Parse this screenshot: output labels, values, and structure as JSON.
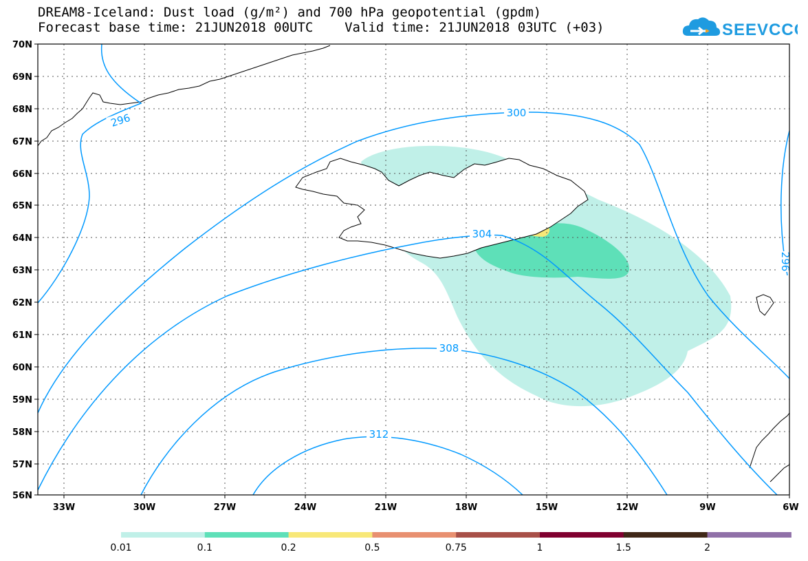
{
  "header": {
    "title_line1": "DREAM8-Iceland: Dust load (g/m²) and 700 hPa geopotential (gpdm)",
    "title_line2": "Forecast base time: 21JUN2018 00UTC    Valid time: 21JUN2018 03UTC (+03)"
  },
  "logo": {
    "text": "SEEVCCC",
    "icon": "cloud-icon",
    "color": "#1e9be0"
  },
  "axes": {
    "lat_labels": [
      "70N",
      "69N",
      "68N",
      "67N",
      "66N",
      "65N",
      "64N",
      "63N",
      "62N",
      "61N",
      "60N",
      "59N",
      "58N",
      "57N",
      "56N"
    ],
    "lon_labels": [
      "33W",
      "30W",
      "27W",
      "24W",
      "21W",
      "18W",
      "15W",
      "12W",
      "9W",
      "6W"
    ]
  },
  "contours": {
    "color": "#0099ff",
    "labels": [
      "296",
      "300",
      "304",
      "308",
      "312",
      "296"
    ]
  },
  "colorbar": {
    "colors": [
      "#c0f0e8",
      "#5ee0b8",
      "#f8e878",
      "#e89070",
      "#a85048",
      "#800030",
      "#402818",
      "#9070a8"
    ],
    "labels": [
      "0.01",
      "0.1",
      "0.2",
      "0.5",
      "0.75",
      "1",
      "1.5",
      "2"
    ]
  }
}
